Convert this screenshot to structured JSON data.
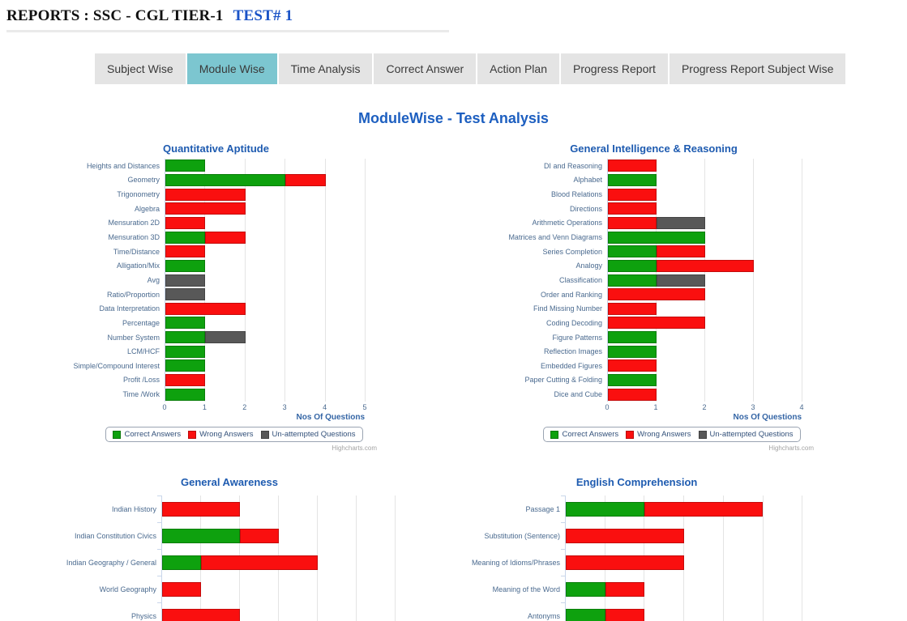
{
  "page": {
    "header": {
      "title": "REPORTS : SSC - CGL TIER-1",
      "test_label": "TEST# 1"
    },
    "tabs": [
      {
        "label": "Subject Wise",
        "active": false
      },
      {
        "label": "Module Wise",
        "active": true
      },
      {
        "label": "Time Analysis",
        "active": false
      },
      {
        "label": "Correct Answer",
        "active": false
      },
      {
        "label": "Action Plan",
        "active": false
      },
      {
        "label": "Progress Report",
        "active": false
      },
      {
        "label": "Progress Report Subject Wise",
        "active": false
      }
    ],
    "main_title": "ModuleWise - Test Analysis",
    "credits": "Highcharts.com"
  },
  "colors": {
    "correct": "#0ea10e",
    "wrong": "#fa0f0f",
    "unattempted": "#585858",
    "tab_active_bg": "#7cc6d0",
    "tab_bg": "#e4e4e4",
    "title_blue": "#1e5bb0",
    "axis_text": "#4a6a8f",
    "gridline": "#e4e4e4"
  },
  "chart_data": [
    {
      "type": "bar",
      "title": "Quantitative Aptitude",
      "categories": [
        "Heights and Distances",
        "Geometry",
        "Trigonometry",
        "Algebra",
        "Mensuration 2D",
        "Mensuration 3D",
        "Time/Distance",
        "Alligation/Mix",
        "Avg",
        "Ratio/Proportion",
        "Data Interpretation",
        "Percentage",
        "Number System",
        "LCM/HCF",
        "Simple/Compound Interest",
        "Profit /Loss",
        "Time /Work"
      ],
      "series": [
        {
          "name": "Correct Answers",
          "color": "correct",
          "values": [
            1,
            3,
            0,
            0,
            0,
            1,
            0,
            1,
            0,
            0,
            0,
            1,
            1,
            1,
            1,
            0,
            1
          ]
        },
        {
          "name": "Wrong Answers",
          "color": "wrong",
          "values": [
            0,
            1,
            2,
            2,
            1,
            1,
            1,
            0,
            0,
            0,
            2,
            0,
            0,
            0,
            0,
            1,
            0
          ]
        },
        {
          "name": "Un-attempted Questions",
          "color": "unattempted",
          "values": [
            0,
            0,
            0,
            0,
            0,
            0,
            0,
            0,
            1,
            1,
            0,
            0,
            1,
            0,
            0,
            0,
            0
          ]
        }
      ],
      "xlabel": "Nos Of Questions",
      "xlim": [
        0,
        5
      ],
      "tick_step": 1,
      "grid": true,
      "show_tick_labels": true,
      "show_xlabel": true,
      "show_legend": true,
      "legend_position": "bottom-center",
      "show_credits": true
    },
    {
      "type": "bar",
      "title": "General Intelligence & Reasoning",
      "categories": [
        "DI and Reasoning",
        "Alphabet",
        "Blood Relations",
        "Directions",
        "Arithmetic Operations",
        "Matrices and Venn Diagrams",
        "Series Completion",
        "Analogy",
        "Classification",
        "Order and Ranking",
        "Find Missing Number",
        "Coding Decoding",
        "Figure Patterns",
        "Reflection Images",
        "Embedded Figures",
        "Paper Cutting & Folding",
        "Dice and Cube"
      ],
      "series": [
        {
          "name": "Correct Answers",
          "color": "correct",
          "values": [
            0,
            1,
            0,
            0,
            0,
            2,
            1,
            1,
            1,
            0,
            0,
            0,
            1,
            1,
            0,
            1,
            0
          ]
        },
        {
          "name": "Wrong Answers",
          "color": "wrong",
          "values": [
            1,
            0,
            1,
            1,
            1,
            0,
            1,
            2,
            0,
            2,
            1,
            2,
            0,
            0,
            1,
            0,
            1
          ]
        },
        {
          "name": "Un-attempted Questions",
          "color": "unattempted",
          "values": [
            0,
            0,
            0,
            0,
            1,
            0,
            0,
            0,
            1,
            0,
            0,
            0,
            0,
            0,
            0,
            0,
            0
          ]
        }
      ],
      "xlabel": "Nos Of Questions",
      "xlim": [
        0,
        4
      ],
      "tick_step": 1,
      "grid": true,
      "show_tick_labels": true,
      "show_xlabel": true,
      "show_legend": true,
      "legend_position": "bottom-center",
      "show_credits": true
    },
    {
      "type": "bar",
      "title": "General Awareness",
      "categories": [
        "Indian History",
        "Indian Constitution Civics",
        "Indian Geography / General",
        "World Geography",
        "Physics"
      ],
      "series": [
        {
          "name": "Correct Answers",
          "color": "correct",
          "values": [
            0,
            2,
            1,
            0,
            0
          ]
        },
        {
          "name": "Wrong Answers",
          "color": "wrong",
          "values": [
            2,
            1,
            3,
            1,
            2
          ]
        },
        {
          "name": "Un-attempted Questions",
          "color": "unattempted",
          "values": [
            0,
            0,
            0,
            0,
            0
          ]
        }
      ],
      "xlabel": "",
      "xlim": [
        0,
        6
      ],
      "tick_step": 1,
      "grid": true,
      "show_tick_labels": false,
      "show_xlabel": false,
      "show_legend": false,
      "legend_position": "none",
      "show_credits": false
    },
    {
      "type": "bar",
      "title": "English Comprehension",
      "categories": [
        "Passage 1",
        "Substitution (Sentence)",
        "Meaning of Idioms/Phrases",
        "Meaning of the Word",
        "Antonyms"
      ],
      "series": [
        {
          "name": "Correct Answers",
          "color": "correct",
          "values": [
            2,
            0,
            0,
            1,
            1
          ]
        },
        {
          "name": "Wrong Answers",
          "color": "wrong",
          "values": [
            3,
            3,
            3,
            1,
            1
          ]
        },
        {
          "name": "Un-attempted Questions",
          "color": "unattempted",
          "values": [
            0,
            0,
            0,
            0,
            0
          ]
        }
      ],
      "xlabel": "",
      "xlim": [
        0,
        6
      ],
      "tick_step": 1,
      "grid": true,
      "show_tick_labels": false,
      "show_xlabel": false,
      "show_legend": false,
      "legend_position": "none",
      "show_credits": false
    }
  ]
}
